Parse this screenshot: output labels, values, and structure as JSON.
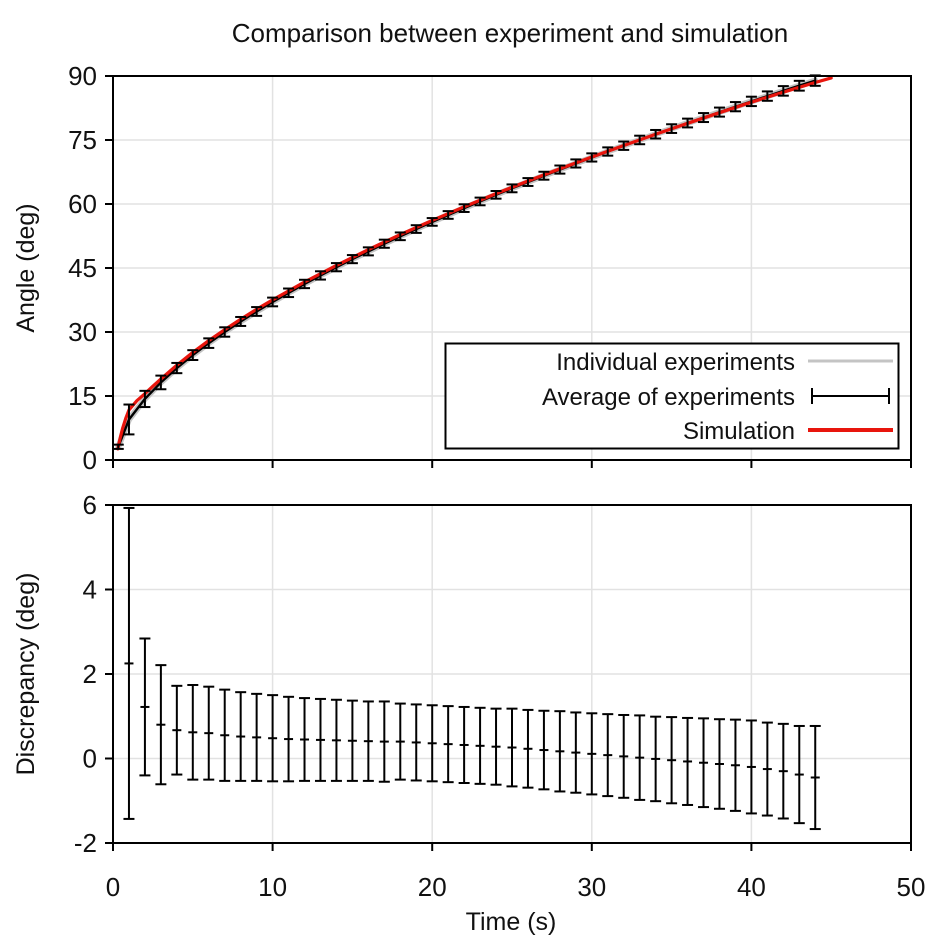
{
  "title": "Comparison between experiment and simulation",
  "colors": {
    "background": "#ffffff",
    "spine": "#000000",
    "gridline": "#e2e2e2",
    "individual": "#c4c4c4",
    "average": "#000000",
    "simulation": "#e8150d"
  },
  "chart_data": [
    {
      "id": "angle-vs-time",
      "type": "line",
      "ylabel": "Angle (deg)",
      "xlabel": "",
      "ylim": [
        0,
        90
      ],
      "yticks": [
        0,
        15,
        30,
        45,
        60,
        75,
        90
      ],
      "xlim": [
        0,
        50
      ],
      "xticks": [
        0,
        10,
        20,
        30,
        40,
        50
      ],
      "x_tick_labels_shown": false,
      "grid": true,
      "legend": {
        "position": "lower right",
        "entries": [
          "Individual experiments",
          "Average of experiments",
          "Simulation"
        ]
      },
      "series": [
        {
          "name": "Individual experiments",
          "style": "several gray lines tightly clustered around the average",
          "color": "#c4c4c4"
        },
        {
          "name": "Average of experiments",
          "style": "black line with error bars every 1 s",
          "color": "#000000",
          "t": [
            0.33,
            1,
            2,
            3,
            4,
            5,
            6,
            7,
            8,
            9,
            10,
            11,
            12,
            13,
            14,
            15,
            16,
            17,
            18,
            19,
            20,
            21,
            22,
            23,
            24,
            25,
            26,
            27,
            28,
            29,
            30,
            31,
            32,
            33,
            34,
            35,
            36,
            37,
            38,
            39,
            40,
            41,
            42,
            43,
            44
          ],
          "angle": [
            3.1,
            9.5,
            14.31,
            18.18,
            21.55,
            24.59,
            27.39,
            30.0,
            32.47,
            34.81,
            37.04,
            39.19,
            41.26,
            43.26,
            45.19,
            47.08,
            48.9,
            50.69,
            52.43,
            54.13,
            55.8,
            57.43,
            59.03,
            60.6,
            62.15,
            63.67,
            65.15,
            66.63,
            68.07,
            69.5,
            70.91,
            72.3,
            73.66,
            75.01,
            76.35,
            77.67,
            78.98,
            80.26,
            81.54,
            82.81,
            84.05,
            85.29,
            86.51,
            87.72,
            88.92
          ],
          "err": [
            0.5,
            3.5,
            1.9,
            1.6,
            1.2,
            1.15,
            1.12,
            1.1,
            1.05,
            1.03,
            1.02,
            1.0,
            0.98,
            0.97,
            0.96,
            0.95,
            0.94,
            0.95,
            0.9,
            0.9,
            0.9,
            0.9,
            0.9,
            0.9,
            0.9,
            0.92,
            0.92,
            0.93,
            0.95,
            0.95,
            0.96,
            0.97,
            0.98,
            1.0,
            1.0,
            1.02,
            1.03,
            1.05,
            1.06,
            1.08,
            1.1,
            1.1,
            1.12,
            1.15,
            1.22
          ]
        },
        {
          "name": "Simulation",
          "style": "smooth red line",
          "color": "#e8150d",
          "t": [
            0.3,
            0.45,
            0.6,
            0.8,
            1,
            1.5,
            2,
            2.5,
            3,
            4,
            5,
            6,
            7,
            8,
            9,
            10,
            12,
            14,
            16,
            18,
            20,
            22,
            24,
            26,
            28,
            30,
            32,
            34,
            36,
            38,
            40,
            42,
            44,
            45
          ],
          "angle": [
            2.6,
            5.2,
            7.4,
            9.8,
            11.75,
            13.9,
            15.53,
            17.3,
            18.98,
            22.22,
            25.21,
            27.99,
            30.55,
            32.99,
            35.31,
            37.52,
            41.71,
            45.62,
            49.31,
            52.83,
            56.16,
            59.35,
            62.43,
            65.38,
            68.24,
            71.02,
            73.71,
            76.34,
            78.91,
            81.41,
            83.85,
            86.21,
            88.47,
            89.55
          ]
        }
      ]
    },
    {
      "id": "discrepancy-vs-time",
      "type": "errorbar",
      "ylabel": "Discrepancy (deg)",
      "xlabel": "Time (s)",
      "ylim": [
        -2,
        6
      ],
      "yticks": [
        -2,
        0,
        2,
        4,
        6
      ],
      "xlim": [
        0,
        50
      ],
      "xticks": [
        0,
        10,
        20,
        30,
        40,
        50
      ],
      "grid": true,
      "series": [
        {
          "name": "Discrepancy",
          "color": "#000000",
          "t": [
            1,
            2,
            3,
            4,
            5,
            6,
            7,
            8,
            9,
            10,
            11,
            12,
            13,
            14,
            15,
            16,
            17,
            18,
            19,
            20,
            21,
            22,
            23,
            24,
            25,
            26,
            27,
            28,
            29,
            30,
            31,
            32,
            33,
            34,
            35,
            36,
            37,
            38,
            39,
            40,
            41,
            42,
            43,
            44
          ],
          "value": [
            2.25,
            1.22,
            0.8,
            0.67,
            0.62,
            0.6,
            0.55,
            0.52,
            0.5,
            0.48,
            0.46,
            0.45,
            0.44,
            0.43,
            0.42,
            0.41,
            0.4,
            0.4,
            0.38,
            0.36,
            0.34,
            0.32,
            0.3,
            0.28,
            0.26,
            0.23,
            0.2,
            0.17,
            0.14,
            0.11,
            0.08,
            0.05,
            0.02,
            -0.01,
            -0.04,
            -0.07,
            -0.1,
            -0.13,
            -0.16,
            -0.2,
            -0.25,
            -0.3,
            -0.38,
            -0.45
          ],
          "err": [
            3.68,
            1.62,
            1.41,
            1.05,
            1.12,
            1.1,
            1.08,
            1.05,
            1.03,
            1.02,
            1.0,
            0.98,
            0.97,
            0.96,
            0.95,
            0.94,
            0.95,
            0.9,
            0.9,
            0.9,
            0.9,
            0.9,
            0.9,
            0.9,
            0.92,
            0.92,
            0.93,
            0.95,
            0.95,
            0.96,
            0.97,
            0.98,
            1.0,
            1.0,
            1.02,
            1.03,
            1.05,
            1.06,
            1.08,
            1.1,
            1.1,
            1.12,
            1.15,
            1.22
          ]
        }
      ]
    }
  ]
}
